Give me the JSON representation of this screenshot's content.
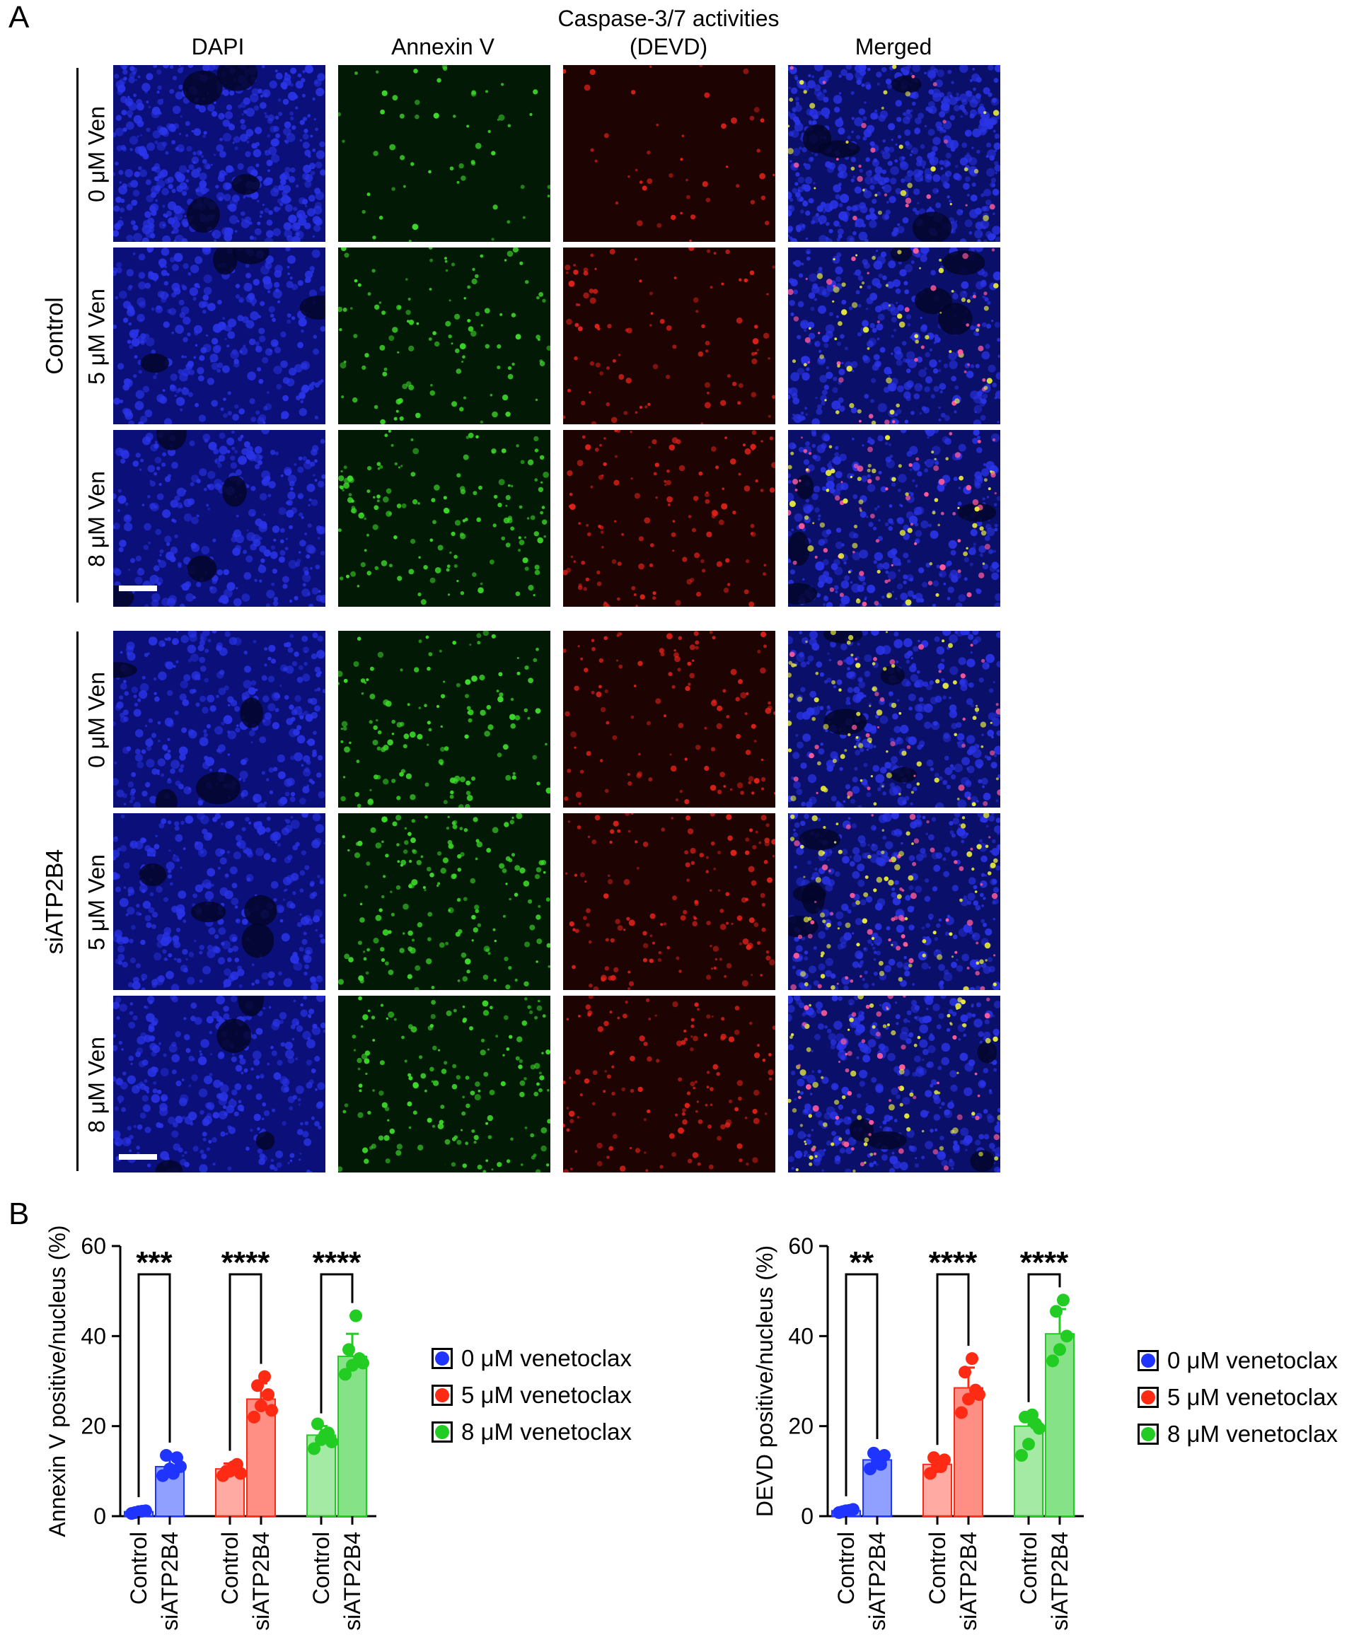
{
  "panel_a": {
    "letter": "A",
    "column_headers": [
      "DAPI",
      "Annexin V",
      "Caspase-3/7 activities\n(DEVD)",
      "Merged"
    ],
    "column_header_caspase_line1": "Caspase-3/7 activities",
    "column_header_caspase_line2": "(DEVD)",
    "groups": [
      {
        "label": "Control",
        "rows": [
          "0 μM Ven",
          "5 μM Ven",
          "8 μM Ven"
        ],
        "intensity": [
          0.25,
          0.6,
          0.85
        ]
      },
      {
        "label": "siATP2B4",
        "rows": [
          "0 μM Ven",
          "5 μM Ven",
          "8 μM Ven"
        ],
        "intensity": [
          0.75,
          0.95,
          0.9
        ]
      }
    ],
    "channel_colors": {
      "dapi": "#2a34e8",
      "annexin": "#3ddc2a",
      "devd": "#e8231a",
      "merged_bg": "#1c2bd6"
    }
  },
  "panel_b": {
    "letter": "B",
    "legend": [
      {
        "label": "0 μM venetoclax",
        "color": "#1f35ff"
      },
      {
        "label": "5 μM venetoclax",
        "color": "#ff2a14"
      },
      {
        "label": "8 μM venetoclax",
        "color": "#22cc22"
      }
    ]
  },
  "chart_data": [
    {
      "type": "bar",
      "ylabel": "Annexin V positive/nucleus (%)",
      "ylim": [
        0,
        60
      ],
      "yticks": [
        0,
        20,
        40,
        60
      ],
      "categories": [
        "Control",
        "siATP2B4",
        "Control",
        "siATP2B4",
        "Control",
        "siATP2B4"
      ],
      "groups": [
        "0 μM venetoclax",
        "5 μM venetoclax",
        "8 μM venetoclax"
      ],
      "values": [
        1,
        11,
        10.5,
        26,
        18,
        35.5
      ],
      "errors": [
        0.4,
        2.0,
        1.2,
        3.5,
        2.0,
        5.0
      ],
      "points": [
        [
          0.6,
          1.0,
          1.2,
          0.8,
          1.1
        ],
        [
          9.0,
          10.5,
          13.0,
          13.5,
          9.5,
          11.0
        ],
        [
          9.0,
          10.0,
          11.5,
          10.0,
          11.0,
          9.5
        ],
        [
          22.0,
          24.5,
          27.0,
          29.0,
          31.0,
          23.5
        ],
        [
          15.0,
          17.0,
          18.5,
          20.5,
          18.0,
          16.5
        ],
        [
          31.5,
          33.5,
          35.0,
          37.0,
          44.5,
          34.0
        ]
      ],
      "significance": [
        "***",
        "****",
        "****"
      ]
    },
    {
      "type": "bar",
      "ylabel": "DEVD positive/nucleus (%)",
      "ylim": [
        0,
        60
      ],
      "yticks": [
        0,
        20,
        40,
        60
      ],
      "categories": [
        "Control",
        "siATP2B4",
        "Control",
        "siATP2B4",
        "Control",
        "siATP2B4"
      ],
      "groups": [
        "0 μM venetoclax",
        "5 μM venetoclax",
        "8 μM venetoclax"
      ],
      "values": [
        1.2,
        12.5,
        11.5,
        28.5,
        20,
        40.5
      ],
      "errors": [
        0.4,
        1.8,
        1.5,
        4.5,
        2.5,
        5.5
      ],
      "points": [
        [
          0.8,
          1.2,
          1.5,
          1.0,
          1.3
        ],
        [
          10.5,
          12.0,
          13.5,
          14.0,
          11.5
        ],
        [
          9.5,
          11.0,
          12.5,
          13.0,
          11.0
        ],
        [
          23.0,
          26.0,
          28.0,
          32.0,
          35.0,
          27.0
        ],
        [
          13.5,
          16.0,
          20.5,
          22.0,
          22.5,
          19.5
        ],
        [
          34.5,
          37.0,
          40.0,
          45.5,
          48.0
        ]
      ],
      "significance": [
        "**",
        "****",
        "****"
      ]
    }
  ]
}
